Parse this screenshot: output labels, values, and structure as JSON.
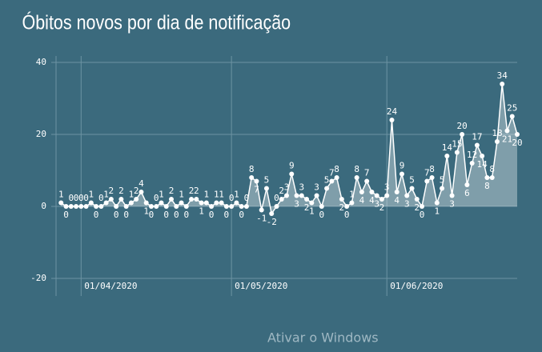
{
  "chart_data": {
    "type": "area-line",
    "title": "Óbitos novos por dia de notificação",
    "watermark": "Ativar o Windows",
    "x": [
      "2020-03-28",
      "2020-03-29",
      "2020-03-30",
      "2020-03-31",
      "2020-04-01",
      "2020-04-02",
      "2020-04-03",
      "2020-04-04",
      "2020-04-05",
      "2020-04-06",
      "2020-04-07",
      "2020-04-08",
      "2020-04-09",
      "2020-04-10",
      "2020-04-11",
      "2020-04-12",
      "2020-04-13",
      "2020-04-14",
      "2020-04-15",
      "2020-04-16",
      "2020-04-17",
      "2020-04-18",
      "2020-04-19",
      "2020-04-20",
      "2020-04-21",
      "2020-04-22",
      "2020-04-23",
      "2020-04-24",
      "2020-04-25",
      "2020-04-26",
      "2020-04-27",
      "2020-04-28",
      "2020-04-29",
      "2020-04-30",
      "2020-05-01",
      "2020-05-02",
      "2020-05-03",
      "2020-05-04",
      "2020-05-05",
      "2020-05-06",
      "2020-05-07",
      "2020-05-08",
      "2020-05-09",
      "2020-05-10",
      "2020-05-11",
      "2020-05-12",
      "2020-05-13",
      "2020-05-14",
      "2020-05-15",
      "2020-05-16",
      "2020-05-17",
      "2020-05-18",
      "2020-05-19",
      "2020-05-20",
      "2020-05-21",
      "2020-05-22",
      "2020-05-23",
      "2020-05-24",
      "2020-05-25",
      "2020-05-26",
      "2020-05-27",
      "2020-05-28",
      "2020-05-29",
      "2020-05-30",
      "2020-05-31",
      "2020-06-01",
      "2020-06-02",
      "2020-06-03",
      "2020-06-04",
      "2020-06-05",
      "2020-06-06",
      "2020-06-07",
      "2020-06-08",
      "2020-06-09",
      "2020-06-10",
      "2020-06-11",
      "2020-06-12",
      "2020-06-13",
      "2020-06-14",
      "2020-06-15",
      "2020-06-16",
      "2020-06-17",
      "2020-06-18",
      "2020-06-19",
      "2020-06-20",
      "2020-06-21",
      "2020-06-22",
      "2020-06-23",
      "2020-06-24",
      "2020-06-25",
      "2020-06-26",
      "2020-06-27"
    ],
    "values": [
      1,
      0,
      0,
      0,
      0,
      0,
      1,
      0,
      0,
      1,
      2,
      0,
      2,
      0,
      1,
      2,
      4,
      1,
      0,
      0,
      1,
      0,
      2,
      0,
      1,
      0,
      2,
      2,
      1,
      1,
      0,
      1,
      1,
      0,
      0,
      1,
      0,
      0,
      8,
      7,
      -1,
      5,
      -2,
      0,
      2,
      3,
      9,
      3,
      3,
      2,
      1,
      3,
      0,
      5,
      7,
      8,
      2,
      0,
      1,
      8,
      4,
      7,
      4,
      3,
      2,
      3,
      24,
      4,
      9,
      3,
      5,
      2,
      0,
      7,
      8,
      1,
      5,
      14,
      3,
      15,
      20,
      6,
      12,
      17,
      14,
      8,
      8,
      18,
      34,
      21,
      25,
      20
    ],
    "color": "#ffffff",
    "xlim": [
      "2020-03-27",
      "2020-06-27"
    ],
    "xticks": [
      {
        "value": "2020-04-01",
        "label": "01/04/2020"
      },
      {
        "value": "2020-05-01",
        "label": "01/05/2020"
      },
      {
        "value": "2020-06-01",
        "label": "01/06/2020"
      }
    ],
    "ylim": [
      -20,
      40
    ],
    "yticks": [
      -20,
      0,
      20,
      40
    ],
    "grid": true
  }
}
